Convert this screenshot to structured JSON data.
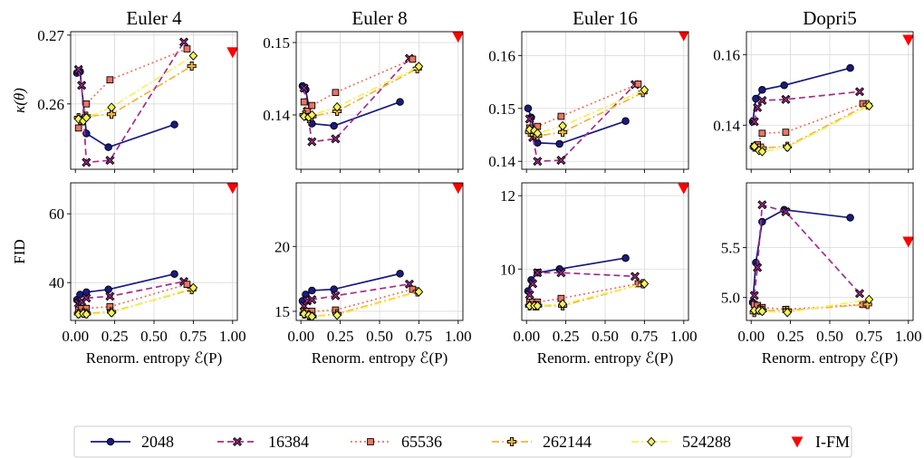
{
  "chart_data": {
    "type": "line",
    "title": "",
    "xlabel": "Renorm. entropy ℰ(P)",
    "xlim": [
      -0.03,
      1.03
    ],
    "xticks": [
      0.0,
      0.25,
      0.5,
      0.75,
      1.0
    ],
    "xtick_labels": [
      "0.00",
      "0.25",
      "0.50",
      "0.75",
      "1.00"
    ],
    "grid": true,
    "legend_position": "bottom-center",
    "column_titles": [
      "Euler 4",
      "Euler 8",
      "Euler 16",
      "Dopri5"
    ],
    "row_labels": [
      "κ(θ)",
      "FID"
    ],
    "series_styles": [
      {
        "name": "2048",
        "color": "#1a1a80",
        "dash": "",
        "marker": "circle"
      },
      {
        "name": "16384",
        "color": "#a52c8d",
        "dash": "7,4",
        "marker": "x"
      },
      {
        "name": "65536",
        "color": "#ec7562",
        "dash": "2,3",
        "marker": "square"
      },
      {
        "name": "262144",
        "color": "#f2b43c",
        "dash": "8,3,2,3",
        "marker": "plus"
      },
      {
        "name": "524288",
        "color": "#f3f25a",
        "dash": "8,3,2,3",
        "marker": "diamond"
      }
    ],
    "reference": {
      "name": "I-FM",
      "color": "#ff0000",
      "marker": "triangle-down"
    },
    "panels": [
      {
        "row": 0,
        "col": 0,
        "ylim": [
          0.2505,
          0.2705
        ],
        "yticks": [
          0.26,
          0.27
        ],
        "ytick_labels": [
          "0.26",
          "0.27"
        ],
        "series": [
          {
            "name": "2048",
            "x": [
              0.01,
              0.03,
              0.07,
              0.21,
              0.63
            ],
            "y": [
              0.2645,
              0.2647,
              0.2557,
              0.2537,
              0.257
            ]
          },
          {
            "name": "16384",
            "x": [
              0.02,
              0.04,
              0.07,
              0.22,
              0.69
            ],
            "y": [
              0.265,
              0.2627,
              0.2515,
              0.2518,
              0.269
            ]
          },
          {
            "name": "65536",
            "x": [
              0.02,
              0.04,
              0.07,
              0.22,
              0.71
            ],
            "y": [
              0.2565,
              0.2575,
              0.26,
              0.2635,
              0.268
            ]
          },
          {
            "name": "262144",
            "x": [
              0.02,
              0.05,
              0.07,
              0.23,
              0.74
            ],
            "y": [
              0.258,
              0.2578,
              0.2582,
              0.2585,
              0.2655
            ]
          },
          {
            "name": "524288",
            "x": [
              0.02,
              0.05,
              0.07,
              0.23,
              0.75
            ],
            "y": [
              0.2578,
              0.2575,
              0.258,
              0.2595,
              0.267
            ]
          }
        ],
        "reference": {
          "x": 1.0,
          "y": 0.2675
        }
      },
      {
        "row": 0,
        "col": 1,
        "ylim": [
          0.1325,
          0.1515
        ],
        "yticks": [
          0.14,
          0.15
        ],
        "ytick_labels": [
          "0.14",
          "0.15"
        ],
        "series": [
          {
            "name": "2048",
            "x": [
              0.01,
              0.03,
              0.07,
              0.21,
              0.63
            ],
            "y": [
              0.144,
              0.1435,
              0.1388,
              0.1385,
              0.1418
            ]
          },
          {
            "name": "16384",
            "x": [
              0.02,
              0.04,
              0.07,
              0.22,
              0.69
            ],
            "y": [
              0.1437,
              0.1405,
              0.1363,
              0.1367,
              0.1478
            ]
          },
          {
            "name": "65536",
            "x": [
              0.02,
              0.04,
              0.07,
              0.22,
              0.71
            ],
            "y": [
              0.1418,
              0.1405,
              0.1413,
              0.1431,
              0.1477
            ]
          },
          {
            "name": "262144",
            "x": [
              0.02,
              0.05,
              0.07,
              0.23,
              0.74
            ],
            "y": [
              0.14,
              0.1395,
              0.1398,
              0.1405,
              0.1464
            ]
          },
          {
            "name": "524288",
            "x": [
              0.02,
              0.05,
              0.07,
              0.23,
              0.75
            ],
            "y": [
              0.1398,
              0.1397,
              0.14,
              0.1411,
              0.1467
            ]
          }
        ],
        "reference": {
          "x": 1.0,
          "y": 0.1508
        }
      },
      {
        "row": 0,
        "col": 2,
        "ylim": [
          0.1385,
          0.1645
        ],
        "yticks": [
          0.14,
          0.15,
          0.16
        ],
        "ytick_labels": [
          "0.14",
          "0.15",
          "0.16"
        ],
        "series": [
          {
            "name": "2048",
            "x": [
              0.01,
              0.03,
              0.07,
              0.21,
              0.63
            ],
            "y": [
              0.15,
              0.1483,
              0.1435,
              0.1433,
              0.1476
            ]
          },
          {
            "name": "16384",
            "x": [
              0.02,
              0.04,
              0.07,
              0.22,
              0.69
            ],
            "y": [
              0.148,
              0.1445,
              0.14,
              0.1402,
              0.1545
            ]
          },
          {
            "name": "65536",
            "x": [
              0.02,
              0.04,
              0.07,
              0.22,
              0.71
            ],
            "y": [
              0.1463,
              0.1458,
              0.1466,
              0.1485,
              0.1546
            ]
          },
          {
            "name": "262144",
            "x": [
              0.02,
              0.05,
              0.07,
              0.23,
              0.74
            ],
            "y": [
              0.1455,
              0.145,
              0.1448,
              0.1455,
              0.153
            ]
          },
          {
            "name": "524288",
            "x": [
              0.02,
              0.05,
              0.07,
              0.23,
              0.75
            ],
            "y": [
              0.146,
              0.1458,
              0.1453,
              0.1467,
              0.1535
            ]
          }
        ],
        "reference": {
          "x": 1.0,
          "y": 0.1638
        }
      },
      {
        "row": 0,
        "col": 3,
        "ylim": [
          0.1275,
          0.1665
        ],
        "yticks": [
          0.14,
          0.16
        ],
        "ytick_labels": [
          "0.14",
          "0.16"
        ],
        "series": [
          {
            "name": "2048",
            "x": [
              0.01,
              0.03,
              0.07,
              0.21,
              0.63
            ],
            "y": [
              0.141,
              0.1475,
              0.15,
              0.1513,
              0.1562
            ]
          },
          {
            "name": "16384",
            "x": [
              0.02,
              0.04,
              0.07,
              0.22,
              0.69
            ],
            "y": [
              0.141,
              0.145,
              0.147,
              0.1473,
              0.1495
            ]
          },
          {
            "name": "65536",
            "x": [
              0.02,
              0.04,
              0.07,
              0.22,
              0.71
            ],
            "y": [
              0.134,
              0.1345,
              0.1377,
              0.138,
              0.1461
            ]
          },
          {
            "name": "262144",
            "x": [
              0.02,
              0.05,
              0.07,
              0.23,
              0.74
            ],
            "y": [
              0.1338,
              0.1335,
              0.1335,
              0.134,
              0.1458
            ]
          },
          {
            "name": "524288",
            "x": [
              0.02,
              0.05,
              0.07,
              0.23,
              0.75
            ],
            "y": [
              0.134,
              0.1328,
              0.1325,
              0.1337,
              0.1455
            ]
          }
        ],
        "reference": {
          "x": 1.0,
          "y": 0.1642
        }
      },
      {
        "row": 1,
        "col": 0,
        "ylim": [
          29,
          69
        ],
        "yticks": [
          40,
          60
        ],
        "ytick_labels": [
          "40",
          "60"
        ],
        "series": [
          {
            "name": "2048",
            "x": [
              0.01,
              0.03,
              0.07,
              0.21,
              0.63
            ],
            "y": [
              35.0,
              36.5,
              37.2,
              38.0,
              42.5
            ]
          },
          {
            "name": "16384",
            "x": [
              0.02,
              0.04,
              0.07,
              0.22,
              0.69
            ],
            "y": [
              34.0,
              34.5,
              35.5,
              36.0,
              40.3
            ]
          },
          {
            "name": "65536",
            "x": [
              0.02,
              0.04,
              0.07,
              0.22,
              0.71
            ],
            "y": [
              32.0,
              32.4,
              32.5,
              33.0,
              39.5
            ]
          },
          {
            "name": "262144",
            "x": [
              0.02,
              0.05,
              0.07,
              0.23,
              0.74
            ],
            "y": [
              31.0,
              31.2,
              31.0,
              31.5,
              38.0
            ]
          },
          {
            "name": "524288",
            "x": [
              0.02,
              0.05,
              0.07,
              0.23,
              0.75
            ],
            "y": [
              30.8,
              31.0,
              30.8,
              31.2,
              38.5
            ]
          }
        ],
        "reference": {
          "x": 1.0,
          "y": 67.5
        }
      },
      {
        "row": 1,
        "col": 1,
        "ylim": [
          14.3,
          24.9
        ],
        "yticks": [
          15,
          20
        ],
        "ytick_labels": [
          "15",
          "20"
        ],
        "series": [
          {
            "name": "2048",
            "x": [
              0.01,
              0.03,
              0.07,
              0.21,
              0.63
            ],
            "y": [
              15.8,
              16.3,
              16.6,
              16.7,
              17.9
            ]
          },
          {
            "name": "16384",
            "x": [
              0.02,
              0.04,
              0.07,
              0.22,
              0.69
            ],
            "y": [
              15.4,
              15.8,
              15.9,
              16.2,
              17.1
            ]
          },
          {
            "name": "65536",
            "x": [
              0.02,
              0.04,
              0.07,
              0.22,
              0.71
            ],
            "y": [
              15.0,
              15.0,
              15.0,
              15.1,
              16.7
            ]
          },
          {
            "name": "262144",
            "x": [
              0.02,
              0.05,
              0.07,
              0.23,
              0.74
            ],
            "y": [
              14.8,
              14.7,
              14.6,
              14.8,
              16.5
            ]
          },
          {
            "name": "524288",
            "x": [
              0.02,
              0.05,
              0.07,
              0.23,
              0.75
            ],
            "y": [
              14.8,
              14.7,
              14.6,
              14.7,
              16.5
            ]
          }
        ],
        "reference": {
          "x": 1.0,
          "y": 24.5
        }
      },
      {
        "row": 1,
        "col": 2,
        "ylim": [
          8.6,
          12.35
        ],
        "yticks": [
          10,
          12
        ],
        "ytick_labels": [
          "10",
          "12"
        ],
        "series": [
          {
            "name": "2048",
            "x": [
              0.01,
              0.03,
              0.07,
              0.21,
              0.63
            ],
            "y": [
              9.4,
              9.7,
              9.9,
              10.0,
              10.3
            ]
          },
          {
            "name": "16384",
            "x": [
              0.02,
              0.04,
              0.07,
              0.22,
              0.69
            ],
            "y": [
              9.3,
              9.6,
              9.9,
              9.9,
              9.8
            ]
          },
          {
            "name": "65536",
            "x": [
              0.02,
              0.04,
              0.07,
              0.22,
              0.71
            ],
            "y": [
              9.1,
              9.1,
              9.1,
              9.2,
              9.6
            ]
          },
          {
            "name": "262144",
            "x": [
              0.02,
              0.05,
              0.07,
              0.23,
              0.74
            ],
            "y": [
              9.0,
              9.0,
              9.0,
              9.0,
              9.6
            ]
          },
          {
            "name": "524288",
            "x": [
              0.02,
              0.05,
              0.07,
              0.23,
              0.75
            ],
            "y": [
              9.0,
              9.0,
              9.0,
              9.05,
              9.6
            ]
          }
        ],
        "reference": {
          "x": 1.0,
          "y": 12.2
        }
      },
      {
        "row": 1,
        "col": 3,
        "ylim": [
          4.77,
          6.15
        ],
        "yticks": [
          5.0,
          5.5
        ],
        "ytick_labels": [
          "5.0",
          "5.5"
        ],
        "series": [
          {
            "name": "2048",
            "x": [
              0.01,
              0.03,
              0.07,
              0.21,
              0.63
            ],
            "y": [
              4.95,
              5.35,
              5.76,
              5.88,
              5.8
            ]
          },
          {
            "name": "16384",
            "x": [
              0.02,
              0.04,
              0.07,
              0.22,
              0.69
            ],
            "y": [
              5.02,
              5.3,
              5.93,
              5.86,
              5.04
            ]
          },
          {
            "name": "65536",
            "x": [
              0.02,
              0.04,
              0.07,
              0.22,
              0.71
            ],
            "y": [
              4.93,
              4.92,
              4.9,
              4.88,
              4.93
            ]
          },
          {
            "name": "262144",
            "x": [
              0.02,
              0.05,
              0.07,
              0.23,
              0.74
            ],
            "y": [
              4.85,
              4.88,
              4.87,
              4.87,
              4.93
            ]
          },
          {
            "name": "524288",
            "x": [
              0.02,
              0.05,
              0.07,
              0.23,
              0.75
            ],
            "y": [
              4.87,
              4.87,
              4.86,
              4.85,
              4.98
            ]
          }
        ],
        "reference": {
          "x": 1.0,
          "y": 5.56
        }
      }
    ]
  }
}
